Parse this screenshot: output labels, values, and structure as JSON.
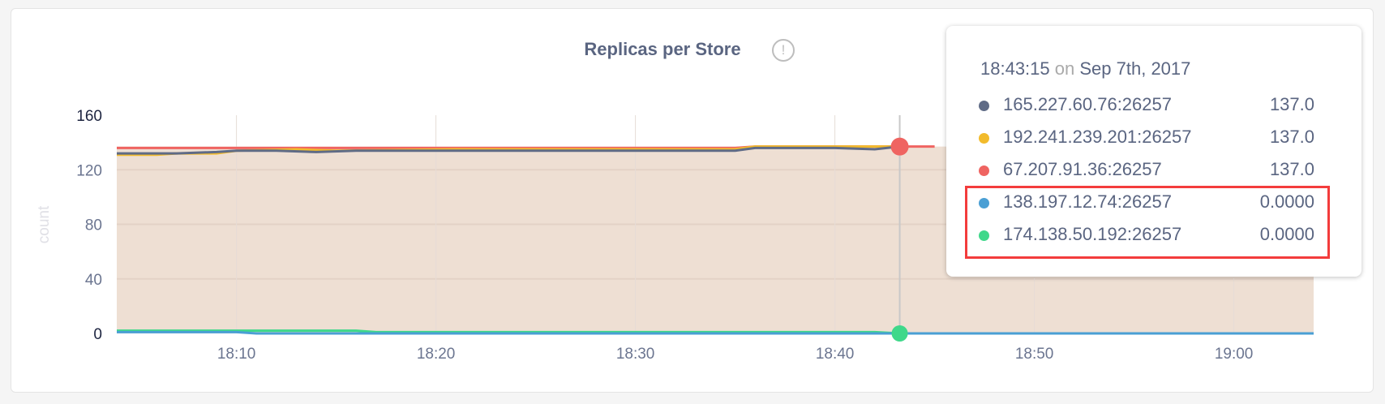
{
  "title": "Replicas per Store",
  "info_icon": "exclamation-circle-icon",
  "tooltip": {
    "time": "18:43:15",
    "on": "on",
    "date": "Sep 7th, 2017",
    "rows": [
      {
        "label": "165.227.60.76:26257",
        "value": "137.0",
        "color": "#5f6b86"
      },
      {
        "label": "192.241.239.201:26257",
        "value": "137.0",
        "color": "#f2bb2c"
      },
      {
        "label": "67.207.91.36:26257",
        "value": "137.0",
        "color": "#ef6461"
      },
      {
        "label": "138.197.12.74:26257",
        "value": "0.0000",
        "color": "#4a9fd4"
      },
      {
        "label": "174.138.50.192:26257",
        "value": "0.0000",
        "color": "#3fd88a"
      }
    ],
    "highlight_color": "#f33c3c"
  },
  "chart_data": {
    "type": "line",
    "ylabel": "count",
    "ylim": [
      0,
      160
    ],
    "yticks": [
      "0",
      "40",
      "80",
      "120",
      "160"
    ],
    "xlim": [
      "18:04",
      "19:04"
    ],
    "xticks": [
      "18:10",
      "18:20",
      "18:30",
      "18:40",
      "18:50",
      "19:00"
    ],
    "grid": true,
    "fill_color": "#eedfd3",
    "hover_x": "18:43:15",
    "series": [
      {
        "name": "165.227.60.76:26257",
        "color": "#5f6b86",
        "points": [
          [
            "18:04",
            132
          ],
          [
            "18:07",
            132
          ],
          [
            "18:09",
            133
          ],
          [
            "18:10",
            134
          ],
          [
            "18:12",
            134
          ],
          [
            "18:14",
            133
          ],
          [
            "18:16",
            134
          ],
          [
            "18:22",
            134
          ],
          [
            "18:35",
            134
          ],
          [
            "18:36",
            136
          ],
          [
            "18:40",
            136
          ],
          [
            "18:42",
            135
          ],
          [
            "18:43:15",
            137
          ]
        ]
      },
      {
        "name": "192.241.239.201:26257",
        "color": "#f2bb2c",
        "points": [
          [
            "18:04",
            131
          ],
          [
            "18:06",
            131
          ],
          [
            "18:07",
            132
          ],
          [
            "18:09",
            132
          ],
          [
            "18:10",
            134
          ],
          [
            "18:13",
            135
          ],
          [
            "18:15",
            134
          ],
          [
            "18:21",
            135
          ],
          [
            "18:35",
            135
          ],
          [
            "18:36",
            137
          ],
          [
            "18:43:15",
            137
          ]
        ]
      },
      {
        "name": "67.207.91.36:26257",
        "color": "#ef6461",
        "points": [
          [
            "18:04",
            136
          ],
          [
            "18:35",
            136
          ],
          [
            "18:36",
            137
          ],
          [
            "18:45",
            137
          ]
        ]
      },
      {
        "name": "138.197.12.74:26257",
        "color": "#4a9fd4",
        "points": [
          [
            "18:04",
            1
          ],
          [
            "18:10",
            1
          ],
          [
            "18:11",
            0
          ],
          [
            "19:04",
            0
          ]
        ]
      },
      {
        "name": "174.138.50.192:26257",
        "color": "#3fd88a",
        "points": [
          [
            "18:04",
            2
          ],
          [
            "18:10",
            2
          ],
          [
            "18:16",
            2
          ],
          [
            "18:17",
            1
          ],
          [
            "18:42",
            1
          ],
          [
            "18:43:15",
            0
          ],
          [
            "19:04",
            0
          ]
        ]
      }
    ]
  }
}
